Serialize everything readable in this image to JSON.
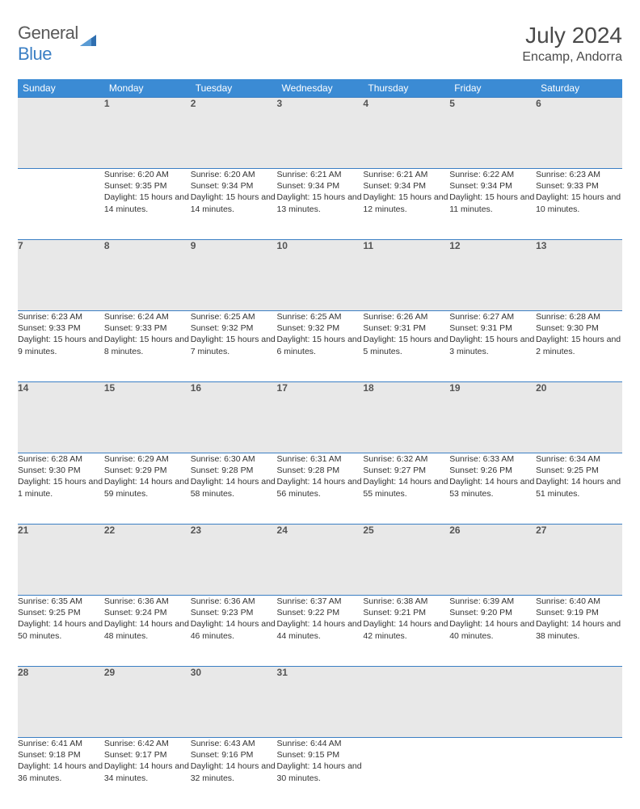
{
  "logo": {
    "text1": "General",
    "text2": "Blue"
  },
  "title": "July 2024",
  "location": "Encamp, Andorra",
  "header_bg": "#3b8bd4",
  "header_fg": "#ffffff",
  "border_color": "#3b7fc4",
  "daynum_bg": "#e8e8e8",
  "days": [
    "Sunday",
    "Monday",
    "Tuesday",
    "Wednesday",
    "Thursday",
    "Friday",
    "Saturday"
  ],
  "weeks": [
    [
      null,
      {
        "n": "1",
        "sr": "6:20 AM",
        "ss": "9:35 PM",
        "dl": "15 hours and 14 minutes."
      },
      {
        "n": "2",
        "sr": "6:20 AM",
        "ss": "9:34 PM",
        "dl": "15 hours and 14 minutes."
      },
      {
        "n": "3",
        "sr": "6:21 AM",
        "ss": "9:34 PM",
        "dl": "15 hours and 13 minutes."
      },
      {
        "n": "4",
        "sr": "6:21 AM",
        "ss": "9:34 PM",
        "dl": "15 hours and 12 minutes."
      },
      {
        "n": "5",
        "sr": "6:22 AM",
        "ss": "9:34 PM",
        "dl": "15 hours and 11 minutes."
      },
      {
        "n": "6",
        "sr": "6:23 AM",
        "ss": "9:33 PM",
        "dl": "15 hours and 10 minutes."
      }
    ],
    [
      {
        "n": "7",
        "sr": "6:23 AM",
        "ss": "9:33 PM",
        "dl": "15 hours and 9 minutes."
      },
      {
        "n": "8",
        "sr": "6:24 AM",
        "ss": "9:33 PM",
        "dl": "15 hours and 8 minutes."
      },
      {
        "n": "9",
        "sr": "6:25 AM",
        "ss": "9:32 PM",
        "dl": "15 hours and 7 minutes."
      },
      {
        "n": "10",
        "sr": "6:25 AM",
        "ss": "9:32 PM",
        "dl": "15 hours and 6 minutes."
      },
      {
        "n": "11",
        "sr": "6:26 AM",
        "ss": "9:31 PM",
        "dl": "15 hours and 5 minutes."
      },
      {
        "n": "12",
        "sr": "6:27 AM",
        "ss": "9:31 PM",
        "dl": "15 hours and 3 minutes."
      },
      {
        "n": "13",
        "sr": "6:28 AM",
        "ss": "9:30 PM",
        "dl": "15 hours and 2 minutes."
      }
    ],
    [
      {
        "n": "14",
        "sr": "6:28 AM",
        "ss": "9:30 PM",
        "dl": "15 hours and 1 minute."
      },
      {
        "n": "15",
        "sr": "6:29 AM",
        "ss": "9:29 PM",
        "dl": "14 hours and 59 minutes."
      },
      {
        "n": "16",
        "sr": "6:30 AM",
        "ss": "9:28 PM",
        "dl": "14 hours and 58 minutes."
      },
      {
        "n": "17",
        "sr": "6:31 AM",
        "ss": "9:28 PM",
        "dl": "14 hours and 56 minutes."
      },
      {
        "n": "18",
        "sr": "6:32 AM",
        "ss": "9:27 PM",
        "dl": "14 hours and 55 minutes."
      },
      {
        "n": "19",
        "sr": "6:33 AM",
        "ss": "9:26 PM",
        "dl": "14 hours and 53 minutes."
      },
      {
        "n": "20",
        "sr": "6:34 AM",
        "ss": "9:25 PM",
        "dl": "14 hours and 51 minutes."
      }
    ],
    [
      {
        "n": "21",
        "sr": "6:35 AM",
        "ss": "9:25 PM",
        "dl": "14 hours and 50 minutes."
      },
      {
        "n": "22",
        "sr": "6:36 AM",
        "ss": "9:24 PM",
        "dl": "14 hours and 48 minutes."
      },
      {
        "n": "23",
        "sr": "6:36 AM",
        "ss": "9:23 PM",
        "dl": "14 hours and 46 minutes."
      },
      {
        "n": "24",
        "sr": "6:37 AM",
        "ss": "9:22 PM",
        "dl": "14 hours and 44 minutes."
      },
      {
        "n": "25",
        "sr": "6:38 AM",
        "ss": "9:21 PM",
        "dl": "14 hours and 42 minutes."
      },
      {
        "n": "26",
        "sr": "6:39 AM",
        "ss": "9:20 PM",
        "dl": "14 hours and 40 minutes."
      },
      {
        "n": "27",
        "sr": "6:40 AM",
        "ss": "9:19 PM",
        "dl": "14 hours and 38 minutes."
      }
    ],
    [
      {
        "n": "28",
        "sr": "6:41 AM",
        "ss": "9:18 PM",
        "dl": "14 hours and 36 minutes."
      },
      {
        "n": "29",
        "sr": "6:42 AM",
        "ss": "9:17 PM",
        "dl": "14 hours and 34 minutes."
      },
      {
        "n": "30",
        "sr": "6:43 AM",
        "ss": "9:16 PM",
        "dl": "14 hours and 32 minutes."
      },
      {
        "n": "31",
        "sr": "6:44 AM",
        "ss": "9:15 PM",
        "dl": "14 hours and 30 minutes."
      },
      null,
      null,
      null
    ]
  ],
  "labels": {
    "sunrise": "Sunrise:",
    "sunset": "Sunset:",
    "daylight": "Daylight:"
  }
}
